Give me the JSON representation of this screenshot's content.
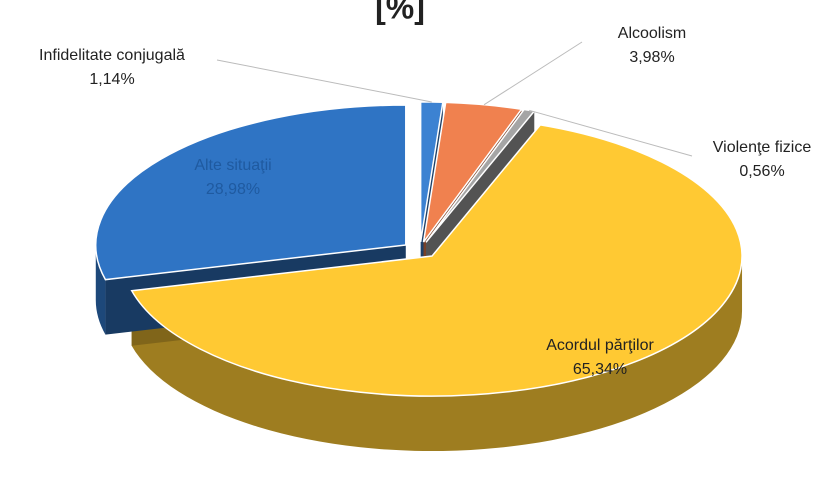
{
  "chart_data": {
    "type": "pie3d",
    "title": "[%]",
    "categories": [
      "Infidelitate conjugală",
      "Alcoolism",
      "Violenţe fizice",
      "Acordul părţilor",
      "Alte situaţii"
    ],
    "values": [
      1.14,
      3.98,
      0.56,
      65.34,
      28.98
    ],
    "value_labels": [
      "1,14%",
      "3,98%",
      "0,56%",
      "65,34%",
      "28,98%"
    ],
    "colors": [
      "#3c82d2",
      "#f0814f",
      "#a5a5a5",
      "#ffc933",
      "#2f74c4"
    ]
  }
}
